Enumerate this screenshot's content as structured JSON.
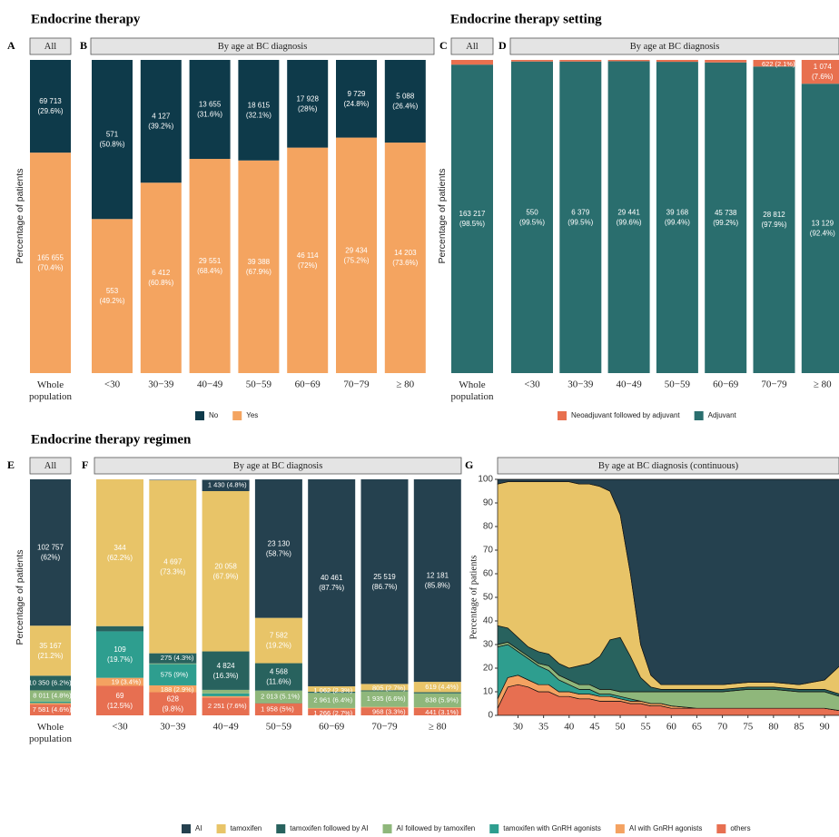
{
  "chart_data": [
    {
      "type": "bar",
      "stacked": true,
      "title": "Endocrine therapy",
      "ylabel": "Percentage of patients",
      "ylim": [
        0,
        100
      ],
      "panels": [
        {
          "letter": "A",
          "strip": "All",
          "categories": [
            "Whole population"
          ]
        },
        {
          "letter": "B",
          "strip": "By age at BC diagnosis",
          "categories": [
            "<30",
            "30−39",
            "40−49",
            "50−59",
            "60−69",
            "70−79",
            "≥ 80"
          ]
        }
      ],
      "series": [
        {
          "name": "No",
          "color": "#0e3a4a",
          "values": [
            29.6,
            50.8,
            39.2,
            31.6,
            32.1,
            28,
            24.8,
            26.4
          ],
          "count_labels": [
            "69 713",
            "571",
            "4 127",
            "13 655",
            "18 615",
            "17 928",
            "9 729",
            "5 088"
          ],
          "value_labels": [
            "(29.6%)",
            "(50.8%)",
            "(39.2%)",
            "(31.6%)",
            "(32.1%)",
            "(28%)",
            "(24.8%)",
            "(26.4%)"
          ]
        },
        {
          "name": "Yes",
          "color": "#f4a460",
          "values": [
            70.4,
            49.2,
            60.8,
            68.4,
            67.9,
            72,
            75.2,
            73.6
          ],
          "count_labels": [
            "165 655",
            "553",
            "6 412",
            "29 551",
            "39 388",
            "46 114",
            "29 434",
            "14 203"
          ],
          "value_labels": [
            "(70.4%)",
            "(49.2%)",
            "(60.8%)",
            "(68.4%)",
            "(67.9%)",
            "(72%)",
            "(75.2%)",
            "(73.6%)"
          ]
        }
      ]
    },
    {
      "type": "bar",
      "stacked": true,
      "title": "Endocrine therapy setting",
      "ylabel": "Percentage of patients",
      "ylim": [
        0,
        100
      ],
      "panels": [
        {
          "letter": "C",
          "strip": "All",
          "categories": [
            "Whole population"
          ]
        },
        {
          "letter": "D",
          "strip": "By age at BC diagnosis",
          "categories": [
            "<30",
            "30−39",
            "40−49",
            "50−59",
            "60−69",
            "70−79",
            "≥ 80"
          ]
        }
      ],
      "series": [
        {
          "name": "Neoadjuvant followed by adjuvant",
          "color": "#e8704f",
          "values": [
            1.5,
            0.5,
            0.5,
            0.4,
            0.6,
            0.8,
            2.1,
            7.6
          ],
          "count_labels": [
            null,
            null,
            null,
            null,
            null,
            null,
            "622",
            "1 074"
          ],
          "value_labels": [
            null,
            null,
            null,
            null,
            null,
            null,
            "(2.1%)",
            "(7.6%)"
          ]
        },
        {
          "name": "Adjuvant",
          "color": "#2a6e6e",
          "values": [
            98.5,
            99.5,
            99.5,
            99.6,
            99.4,
            99.2,
            97.9,
            92.4
          ],
          "count_labels": [
            "163 217",
            "550",
            "6 379",
            "29 441",
            "39 168",
            "45 738",
            "28 812",
            "13 129"
          ],
          "value_labels": [
            "(98.5%)",
            "(99.5%)",
            "(99.5%)",
            "(99.6%)",
            "(99.4%)",
            "(99.2%)",
            "(97.9%)",
            "(92.4%)"
          ]
        }
      ]
    },
    {
      "type": "bar",
      "stacked": true,
      "title": "Endocrine therapy regimen",
      "ylabel": "Percentage of patients",
      "ylim": [
        0,
        100
      ],
      "panels": [
        {
          "letter": "E",
          "strip": "All",
          "categories": [
            "Whole population"
          ]
        },
        {
          "letter": "F",
          "strip": "By age at BC diagnosis",
          "categories": [
            "<30",
            "30−39",
            "40−49",
            "50−59",
            "60−69",
            "70−79",
            "≥ 80"
          ]
        }
      ],
      "series": [
        {
          "name": "AI",
          "color": "#25414f",
          "values": [
            62,
            0,
            0.2,
            4.8,
            58.7,
            87.7,
            86.7,
            85.8
          ],
          "count_labels": [
            "102 757",
            null,
            null,
            "1 430",
            "23 130",
            "40 461",
            "25 519",
            "12 181"
          ],
          "value_labels": [
            "(62%)",
            null,
            null,
            "(4.8%)",
            "(58.7%)",
            "(87.7%)",
            "(86.7%)",
            "(85.8%)"
          ]
        },
        {
          "name": "tamoxifen",
          "color": "#e8c468",
          "values": [
            21.2,
            62.2,
            73.3,
            67.9,
            19.2,
            2.3,
            2.7,
            4.4
          ],
          "count_labels": [
            "35 167",
            "344",
            "4 697",
            "20 058",
            "7 582",
            "1 062",
            "805",
            "619"
          ],
          "value_labels": [
            "(21.2%)",
            "(62.2%)",
            "(73.3%)",
            "(67.9%)",
            "(19.2%)",
            "(2.3%)",
            "(2.7%)",
            "(4.4%)"
          ]
        },
        {
          "name": "tamoxifen followed by AI",
          "color": "#28625e",
          "values": [
            6.2,
            2.2,
            4.3,
            16.3,
            11.6,
            0.5,
            0.4,
            0.5
          ],
          "count_labels": [
            "10 350",
            null,
            "275",
            "4 824",
            "4 568",
            null,
            null,
            null
          ],
          "value_labels": [
            "(6.2%)",
            null,
            "(4.3%)",
            "(16.3%)",
            "(11.6%)",
            null,
            null,
            null
          ]
        },
        {
          "name": "AI followed by tamoxifen",
          "color": "#8fb77b",
          "values": [
            4.8,
            0,
            0.3,
            1.5,
            5.1,
            6.4,
            6.6,
            5.9
          ],
          "count_labels": [
            "8 011",
            null,
            null,
            null,
            "2 013",
            "2 961",
            "1 935",
            "838"
          ],
          "value_labels": [
            "(4.8%)",
            null,
            null,
            null,
            "(5.1%)",
            "(6.4%)",
            "(6.6%)",
            "(5.9%)"
          ]
        },
        {
          "name": "tamoxifen with GnRH agonists",
          "color": "#2e9e8f",
          "values": [
            0.6,
            19.7,
            9,
            1.2,
            0.2,
            0,
            0,
            0
          ],
          "count_labels": [
            null,
            "109",
            "575",
            null,
            null,
            null,
            null,
            null
          ],
          "value_labels": [
            null,
            "(19.7%)",
            "(9%)",
            null,
            null,
            null,
            null,
            null
          ]
        },
        {
          "name": "AI with GnRH agonists",
          "color": "#f4a261",
          "values": [
            0.6,
            3.4,
            2.9,
            0.5,
            0.2,
            0.4,
            0.3,
            0.3
          ],
          "count_labels": [
            null,
            "19",
            "188",
            null,
            null,
            null,
            null,
            null
          ],
          "value_labels": [
            null,
            "(3.4%)",
            "(2.9%)",
            null,
            null,
            null,
            null,
            null
          ]
        },
        {
          "name": "others",
          "color": "#e76f51",
          "values": [
            4.6,
            12.5,
            9.8,
            7.6,
            5,
            2.7,
            3.3,
            3.1
          ],
          "count_labels": [
            "7 581",
            "69",
            "628",
            "2 251",
            "1 958",
            "1 266",
            "968",
            "441"
          ],
          "value_labels": [
            "(4.6%)",
            "(12.5%)",
            "(9.8%)",
            "(7.6%)",
            "(5%)",
            "(2.7%)",
            "(3.3%)",
            "(3.1%)"
          ]
        }
      ]
    },
    {
      "type": "area",
      "stacked": true,
      "ylabel": "Percentage of patients",
      "panels": [
        {
          "letter": "G",
          "strip": "By age at BC diagnosis (continuous)"
        }
      ],
      "x": [
        26,
        28,
        30,
        32,
        34,
        36,
        38,
        40,
        42,
        44,
        46,
        48,
        50,
        52,
        54,
        56,
        58,
        60,
        65,
        70,
        75,
        80,
        85,
        90,
        93
      ],
      "xlim": [
        26,
        93
      ],
      "ylim": [
        0,
        100
      ],
      "xticks": [
        30,
        35,
        40,
        45,
        50,
        55,
        60,
        65,
        70,
        75,
        80,
        85,
        90
      ],
      "yticks": [
        0,
        10,
        20,
        30,
        40,
        50,
        60,
        70,
        80,
        90,
        100
      ],
      "series": [
        {
          "color": "#25414f",
          "values": [
            2,
            1,
            1,
            1,
            1,
            1,
            1,
            1,
            2,
            2,
            3,
            5,
            15,
            40,
            70,
            83,
            87,
            87,
            87,
            87,
            86,
            86,
            87,
            85,
            79
          ]
        },
        {
          "color": "#e8c468",
          "values": [
            60,
            62,
            66,
            70,
            72,
            73,
            77,
            79,
            77,
            76,
            72,
            63,
            52,
            35,
            14,
            5,
            2,
            2,
            2,
            2,
            2,
            2,
            2,
            4,
            12
          ]
        },
        {
          "color": "#28625e",
          "values": [
            8,
            6,
            5,
            4,
            5,
            5,
            5,
            5,
            8,
            9,
            14,
            21,
            23,
            15,
            6,
            2,
            1,
            1,
            1,
            1,
            1,
            1,
            1,
            1,
            1
          ]
        },
        {
          "color": "#8fb77b",
          "values": [
            1,
            1,
            1,
            1,
            1,
            2,
            2,
            2,
            2,
            2,
            2,
            2,
            2,
            3,
            4,
            5,
            5,
            6,
            7,
            7,
            8,
            8,
            7,
            7,
            6
          ]
        },
        {
          "color": "#2e9e8f",
          "values": [
            22,
            14,
            10,
            9,
            8,
            6,
            5,
            3,
            2,
            2,
            1,
            1,
            1,
            1,
            0,
            0,
            0,
            0,
            0,
            0,
            0,
            0,
            0,
            0,
            0
          ]
        },
        {
          "color": "#f4a261",
          "values": [
            4,
            4,
            4,
            3,
            3,
            3,
            2,
            2,
            2,
            2,
            2,
            2,
            1,
            1,
            1,
            1,
            1,
            1,
            0,
            0,
            0,
            0,
            0,
            0,
            0
          ]
        },
        {
          "color": "#e76f51",
          "values": [
            3,
            12,
            13,
            12,
            10,
            10,
            8,
            8,
            7,
            7,
            6,
            6,
            6,
            5,
            5,
            4,
            4,
            3,
            3,
            3,
            3,
            3,
            3,
            3,
            2
          ]
        }
      ]
    }
  ]
}
